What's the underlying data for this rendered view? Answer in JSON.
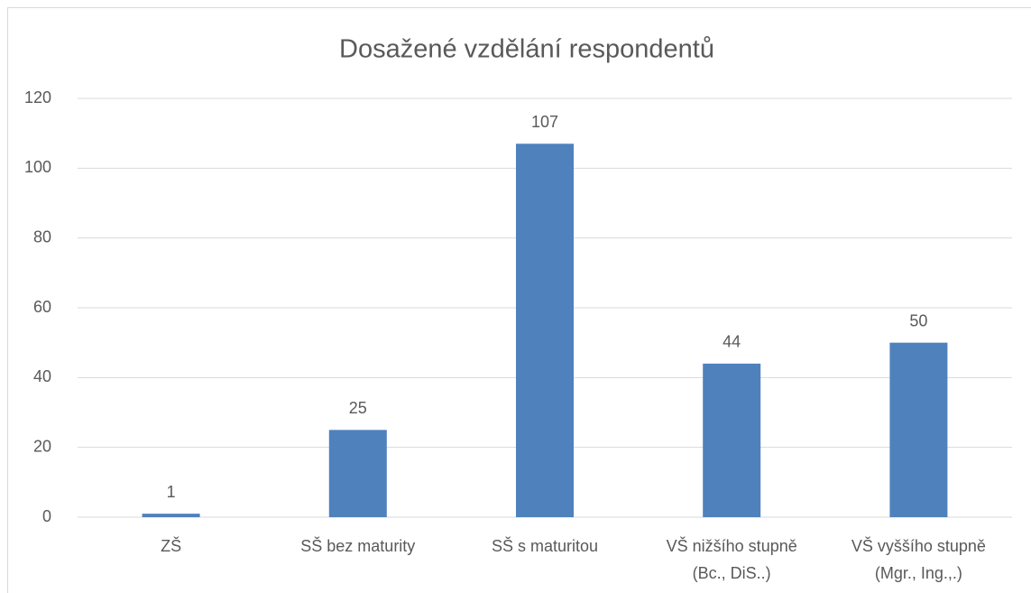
{
  "chart_data": {
    "type": "bar",
    "title": "Dosažené vzdělání respondentů",
    "categories": [
      "ZŠ",
      "SŠ bez maturity",
      "SŠ s maturitou",
      "VŠ nižšího stupně (Bc., DiS..)",
      "VŠ vyššího stupně (Mgr., Ing.,.)"
    ],
    "values": [
      1,
      25,
      107,
      44,
      50
    ],
    "color": "#4f81bd",
    "ylim": [
      0,
      120
    ],
    "yticks": [
      0,
      20,
      40,
      60,
      80,
      100,
      120
    ],
    "grid": true
  }
}
